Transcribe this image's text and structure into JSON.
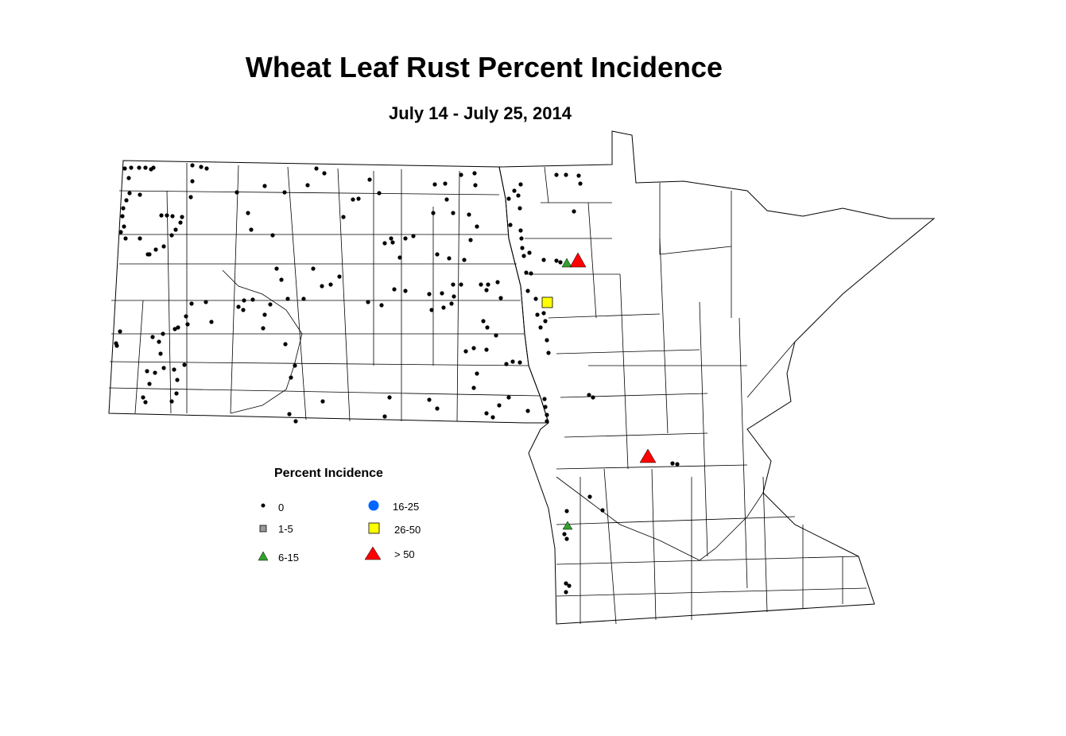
{
  "title": "Wheat Leaf Rust Percent Incidence",
  "subtitle": "July 14 - July 25, 2014",
  "legend": {
    "title": "Percent Incidence",
    "items": [
      {
        "label": "0",
        "symbol": "dot",
        "color": "#000000"
      },
      {
        "label": "1-5",
        "symbol": "square",
        "color": "#999999"
      },
      {
        "label": "6-15",
        "symbol": "triangle",
        "color": "#33a02c"
      },
      {
        "label": "16-25",
        "symbol": "circle",
        "color": "#0066ff"
      },
      {
        "label": "26-50",
        "symbol": "square",
        "color": "#ffff00"
      },
      {
        "label": "> 50",
        "symbol": "triangle",
        "color": "#ff0000"
      }
    ]
  }
}
